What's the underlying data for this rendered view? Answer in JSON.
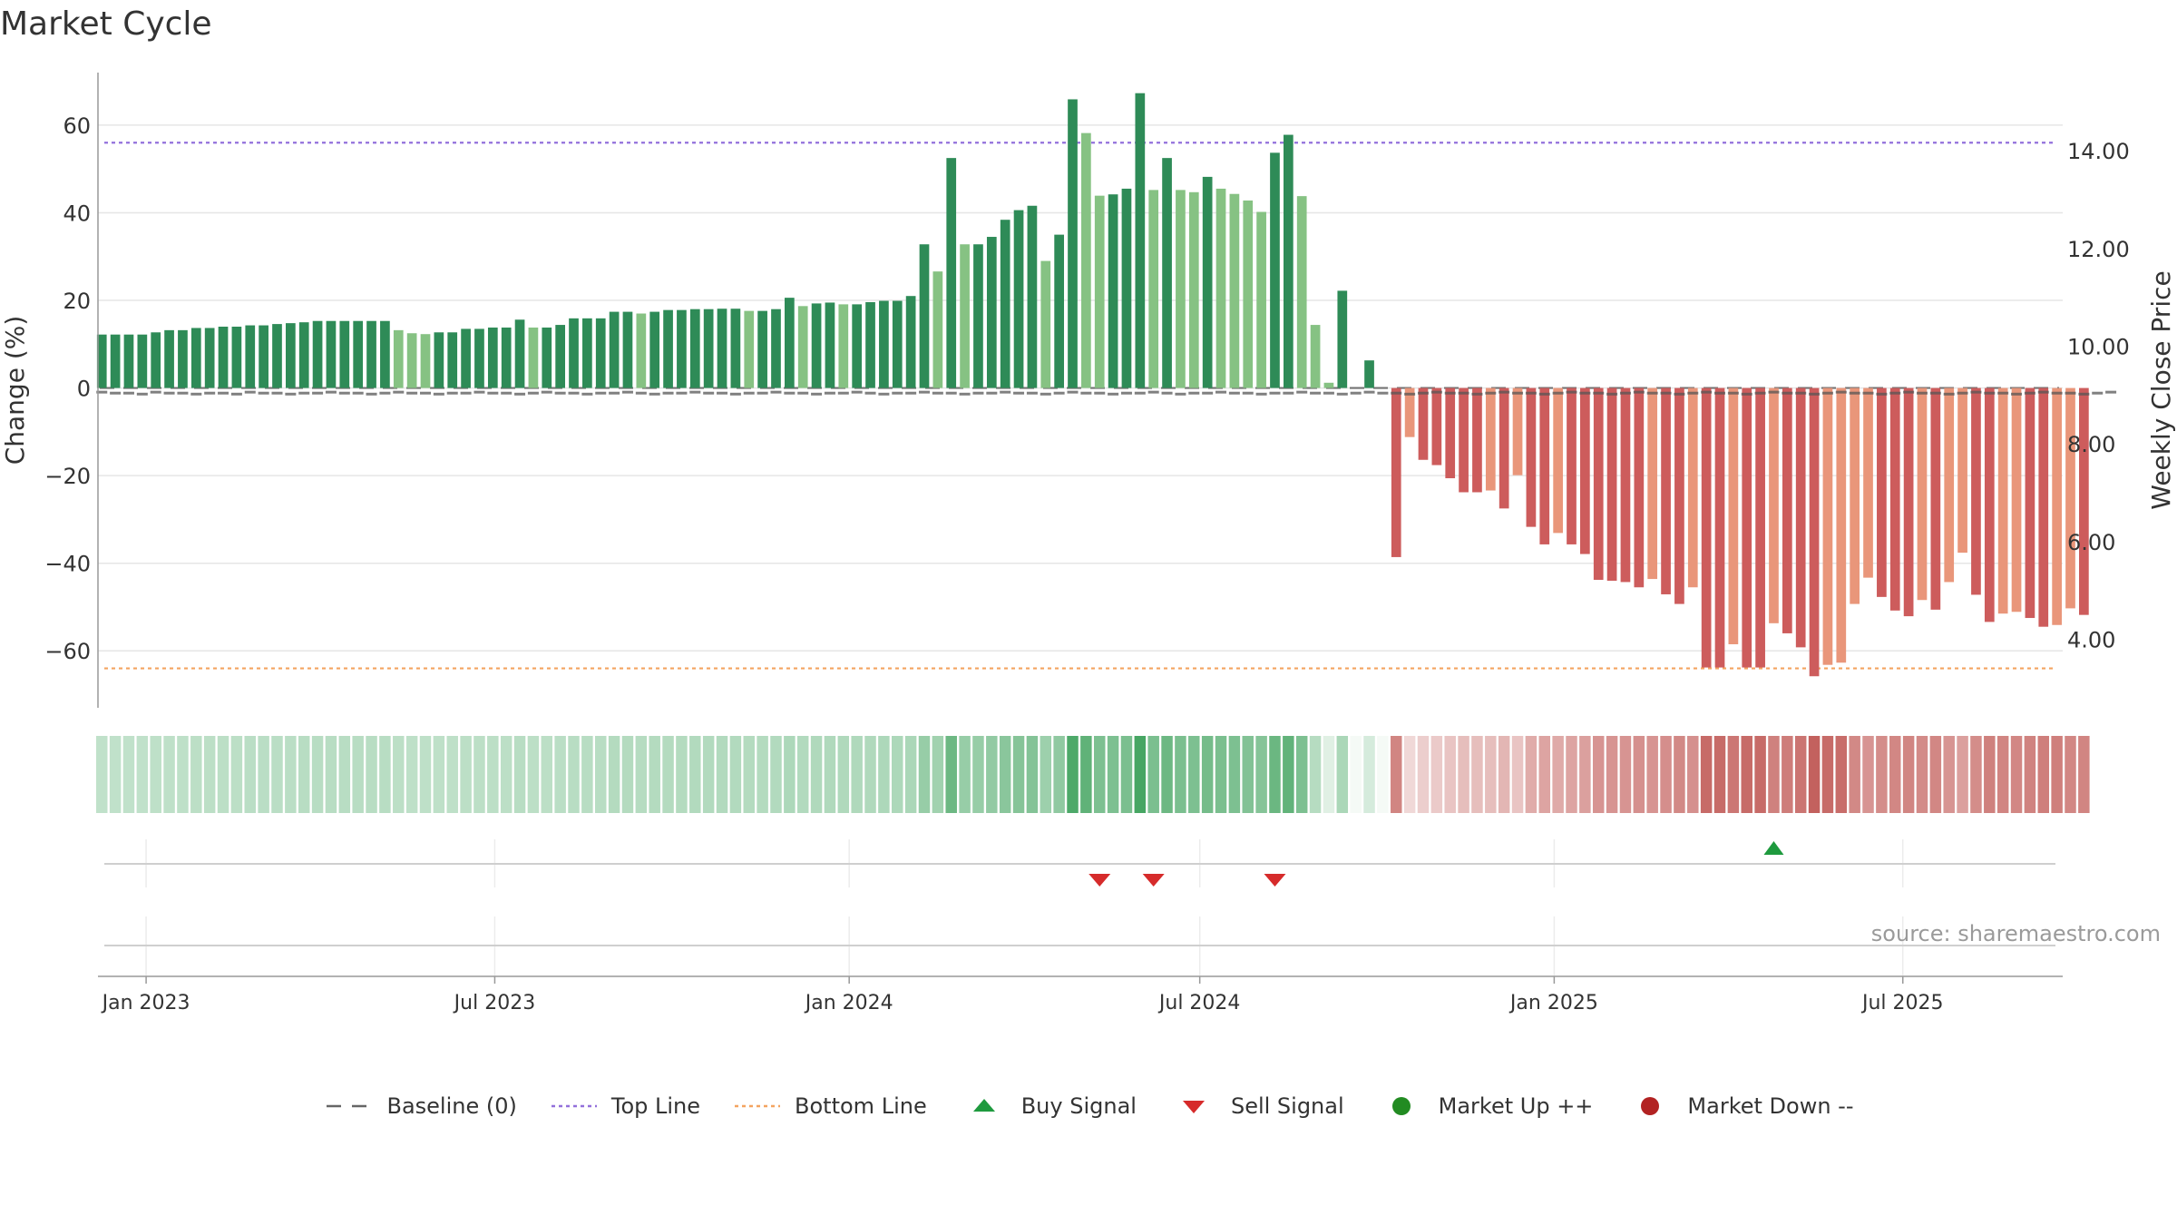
{
  "title": "Market Cycle",
  "source": "source: sharemaestro.com",
  "colors": {
    "up_dark": "#2e8b57",
    "up_light": "#86c283",
    "down_dark": "#cd5c5c",
    "down_light": "#e9967a",
    "top_line": "#9370db",
    "bottom_line": "#f4a460",
    "baseline": "#666666",
    "buy": "#1e9a3e",
    "sell": "#d62b2b",
    "market_up": "#228b22",
    "market_down": "#b22222"
  },
  "legend": [
    {
      "key": "baseline",
      "label": "Baseline (0)"
    },
    {
      "key": "top",
      "label": "Top Line"
    },
    {
      "key": "bottom",
      "label": "Bottom Line"
    },
    {
      "key": "buy",
      "label": "Buy Signal"
    },
    {
      "key": "sell",
      "label": "Sell Signal"
    },
    {
      "key": "up",
      "label": "Market Up ++"
    },
    {
      "key": "down",
      "label": "Market Down --"
    }
  ],
  "chart_data": {
    "type": "bar",
    "title": "Market Cycle",
    "xlabel": "",
    "ylabel": "Change (%)",
    "y2label": "Weekly Close Price",
    "ylim": [
      -73,
      72
    ],
    "y2lim": [
      2.6,
      15.6
    ],
    "yticks": [
      60,
      40,
      20,
      0,
      -20,
      -40,
      -60
    ],
    "ytick_labels": [
      "60",
      "40",
      "20",
      "0",
      "−20",
      "−40",
      "−60"
    ],
    "y2ticks": [
      14,
      12,
      10,
      8,
      6,
      4
    ],
    "y2tick_labels": [
      "14.00",
      "12.00",
      "10.00",
      "8.00",
      "6.00",
      "4.00"
    ],
    "xlim": [
      "2022-12-07",
      "2025-09-22"
    ],
    "xticks": [
      "2023-01-01",
      "2023-07-01",
      "2024-01-01",
      "2024-07-01",
      "2025-01-01",
      "2025-07-01"
    ],
    "xtick_labels": [
      "Jan 2023",
      "Jul 2023",
      "Jan 2024",
      "Jul 2024",
      "Jan 2025",
      "Jul 2025"
    ],
    "start_date": "2022-12-09",
    "week_interval_days": 7,
    "top_line": 56,
    "bottom_line": -64,
    "grid": true,
    "legend_position": "bottom-center",
    "values": [
      12.2,
      12.2,
      12.2,
      12.2,
      12.7,
      13.2,
      13.2,
      13.7,
      13.7,
      14.0,
      14.0,
      14.3,
      14.3,
      14.6,
      14.8,
      15.0,
      15.3,
      15.3,
      15.3,
      15.3,
      15.3,
      15.3,
      13.2,
      12.5,
      12.3,
      12.7,
      12.7,
      13.5,
      13.5,
      13.8,
      13.8,
      15.6,
      13.8,
      13.8,
      14.4,
      15.9,
      15.9,
      15.9,
      17.4,
      17.4,
      17.0,
      17.4,
      17.8,
      17.8,
      18.0,
      18.0,
      18.1,
      18.1,
      17.6,
      17.6,
      18.0,
      20.6,
      18.7,
      19.3,
      19.5,
      19.1,
      19.1,
      19.6,
      19.9,
      19.9,
      21.0,
      32.8,
      26.6,
      52.5,
      32.8,
      32.8,
      34.5,
      38.4,
      40.6,
      41.6,
      29.0,
      35.0,
      65.9,
      58.2,
      43.9,
      44.2,
      45.5,
      67.3,
      45.2,
      52.5,
      45.2,
      44.7,
      48.2,
      45.5,
      44.3,
      42.8,
      40.2,
      53.7,
      57.8,
      43.8,
      14.4,
      1.2,
      22.2,
      0,
      6.3,
      0,
      -38.6,
      -11.2,
      -16.4,
      -17.6,
      -20.6,
      -23.8,
      -23.8,
      -23.4,
      -27.5,
      -19.9,
      -31.7,
      -35.7,
      -33.1,
      -35.7,
      -37.9,
      -43.8,
      -44.0,
      -44.3,
      -45.5,
      -43.6,
      -47.1,
      -49.3,
      -45.5,
      -63.8,
      -63.8,
      -58.5,
      -63.8,
      -63.8,
      -53.7,
      -56.0,
      -59.2,
      -65.8,
      -63.2,
      -62.7,
      -49.3,
      -43.3,
      -47.7,
      -50.8,
      -52.1,
      -48.4,
      -50.6,
      -44.3,
      -37.6,
      -47.2,
      -53.4,
      -51.5,
      -51.1,
      -52.5,
      -54.5,
      -54.1,
      -50.3,
      -51.8
    ],
    "price_dots": [
      9.06,
      9.04,
      9.04,
      9.02,
      9.06,
      9.04,
      9.04,
      9.02,
      9.04,
      9.04,
      9.02,
      9.06,
      9.04,
      9.04,
      9.02,
      9.04,
      9.04,
      9.06,
      9.04,
      9.04,
      9.02,
      9.04,
      9.06,
      9.04,
      9.04,
      9.02,
      9.04,
      9.04,
      9.06,
      9.04,
      9.04,
      9.02,
      9.04,
      9.06,
      9.04,
      9.04,
      9.02,
      9.04,
      9.04,
      9.06,
      9.04,
      9.02,
      9.04,
      9.04,
      9.06,
      9.04,
      9.04,
      9.02,
      9.04,
      9.04,
      9.06,
      9.04,
      9.04,
      9.02,
      9.04,
      9.04,
      9.06,
      9.04,
      9.02,
      9.04,
      9.04,
      9.06,
      9.04,
      9.04,
      9.02,
      9.04,
      9.04,
      9.06,
      9.04,
      9.04,
      9.02,
      9.04,
      9.06,
      9.04,
      9.04,
      9.02,
      9.04,
      9.04,
      9.06,
      9.04,
      9.02,
      9.04,
      9.04,
      9.06,
      9.04,
      9.04,
      9.02,
      9.04,
      9.04,
      9.06,
      9.04,
      9.04,
      9.02,
      9.04,
      9.06,
      9.04,
      9.04,
      9.02,
      9.04,
      9.06,
      9.04,
      9.04,
      9.02,
      9.04,
      9.06,
      9.04,
      9.04,
      9.02,
      9.04,
      9.06,
      9.04,
      9.04,
      9.02,
      9.04,
      9.06,
      9.04,
      9.04,
      9.02,
      9.04,
      9.06,
      9.04,
      9.04,
      9.02,
      9.04,
      9.06,
      9.04,
      9.04,
      9.02,
      9.04,
      9.06,
      9.04,
      9.04,
      9.02,
      9.04,
      9.06,
      9.04,
      9.04,
      9.02,
      9.04,
      9.06,
      9.04,
      9.04,
      9.02,
      9.04,
      9.06,
      9.04,
      9.04,
      9.02,
      9.04,
      9.06
    ],
    "intensity": [
      0.3,
      0.3,
      0.3,
      0.3,
      0.31,
      0.31,
      0.31,
      0.32,
      0.32,
      0.32,
      0.32,
      0.33,
      0.33,
      0.33,
      0.33,
      0.34,
      0.34,
      0.34,
      0.34,
      0.34,
      0.34,
      0.34,
      0.32,
      0.31,
      0.31,
      0.31,
      0.31,
      0.32,
      0.32,
      0.32,
      0.32,
      0.34,
      0.32,
      0.32,
      0.33,
      0.34,
      0.34,
      0.34,
      0.36,
      0.36,
      0.35,
      0.36,
      0.36,
      0.36,
      0.37,
      0.37,
      0.37,
      0.37,
      0.36,
      0.36,
      0.37,
      0.39,
      0.37,
      0.38,
      0.38,
      0.38,
      0.38,
      0.38,
      0.39,
      0.39,
      0.4,
      0.5,
      0.45,
      0.7,
      0.5,
      0.5,
      0.52,
      0.56,
      0.58,
      0.59,
      0.47,
      0.53,
      0.85,
      0.76,
      0.62,
      0.62,
      0.63,
      0.88,
      0.63,
      0.7,
      0.63,
      0.62,
      0.66,
      0.63,
      0.62,
      0.6,
      0.58,
      0.71,
      0.75,
      0.62,
      0.35,
      0.15,
      0.4,
      0.05,
      0.2,
      0.05,
      0.62,
      0.2,
      0.25,
      0.27,
      0.3,
      0.33,
      0.33,
      0.33,
      0.37,
      0.3,
      0.42,
      0.46,
      0.43,
      0.46,
      0.48,
      0.54,
      0.54,
      0.54,
      0.56,
      0.54,
      0.57,
      0.6,
      0.56,
      0.75,
      0.75,
      0.69,
      0.75,
      0.75,
      0.64,
      0.66,
      0.7,
      0.8,
      0.75,
      0.74,
      0.6,
      0.54,
      0.58,
      0.61,
      0.62,
      0.59,
      0.61,
      0.54,
      0.48,
      0.58,
      0.64,
      0.62,
      0.61,
      0.63,
      0.65,
      0.65,
      0.61,
      0.62
    ],
    "buy_signals": [
      "2025-04-25"
    ],
    "sell_signals": [
      "2024-05-10",
      "2024-06-07",
      "2024-08-09"
    ]
  }
}
